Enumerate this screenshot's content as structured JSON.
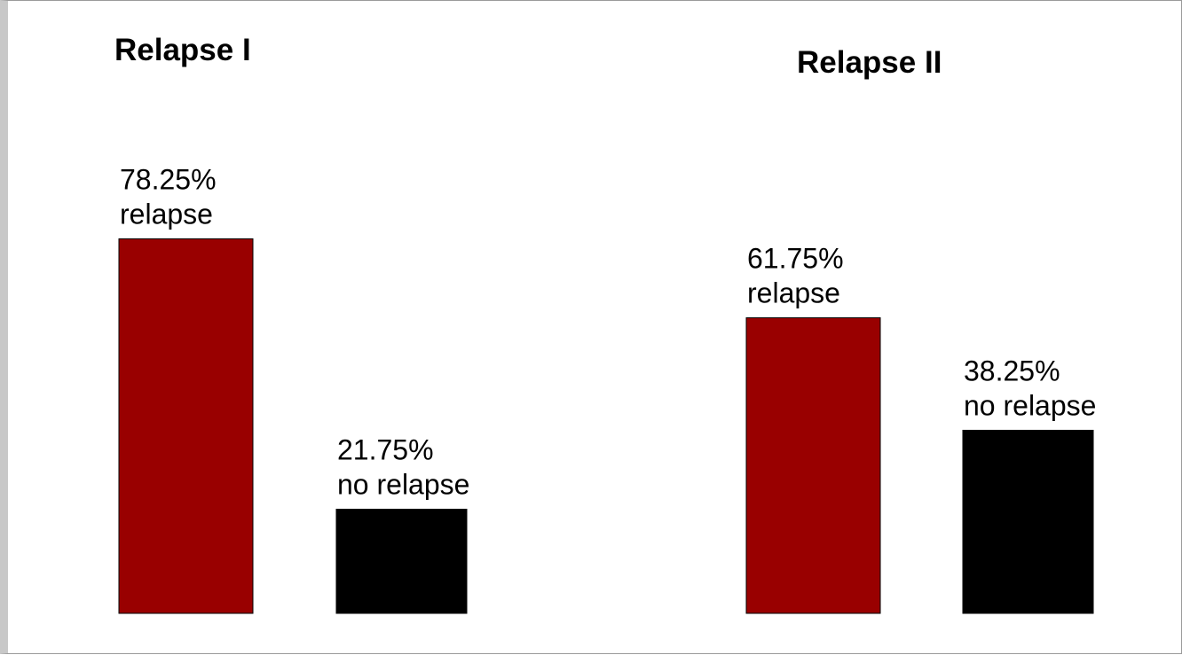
{
  "chart_data": [
    {
      "type": "bar",
      "title": "Relapse I",
      "categories": [
        "relapse",
        "no relapse"
      ],
      "values": [
        78.25,
        21.75
      ],
      "labels": [
        {
          "value": "78.25%",
          "text": "relapse"
        },
        {
          "value": "21.75%",
          "text": "no relapse"
        }
      ],
      "colors": [
        "#990000",
        "#000000"
      ],
      "ylim": [
        0,
        100
      ],
      "grid": false,
      "xlabel": "",
      "ylabel": ""
    },
    {
      "type": "bar",
      "title": "Relapse II",
      "categories": [
        "relapse",
        "no relapse"
      ],
      "values": [
        61.75,
        38.25
      ],
      "labels": [
        {
          "value": "61.75%",
          "text": "relapse"
        },
        {
          "value": "38.25%",
          "text": "no relapse"
        }
      ],
      "colors": [
        "#990000",
        "#000000"
      ],
      "ylim": [
        0,
        100
      ],
      "grid": false,
      "xlabel": "",
      "ylabel": ""
    }
  ]
}
